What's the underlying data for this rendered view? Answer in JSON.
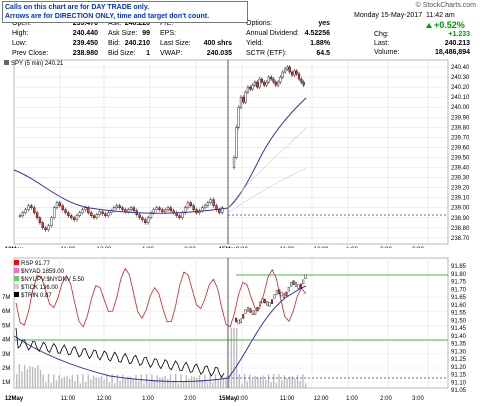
{
  "notice": {
    "line1": "Calls on this chart are for DAY TRADE only.",
    "line2": "Arrows are for DIRECTION ONLY, time and target don't count."
  },
  "branding": {
    "logo": "© StockCharts.com"
  },
  "quote": {
    "date": "Monday 15-May-2017",
    "time": "11:42 am",
    "chg_pct": "+0.52%",
    "rows": [
      {
        "a_label": "Open:",
        "a_val": "239.470",
        "b_label": "Ask:",
        "b_val": "240.220",
        "c_label": "P/E:",
        "c_val": "",
        "d_label": "Options:",
        "d_val": "yes"
      },
      {
        "a_label": "High:",
        "a_val": "240.440",
        "b_label": "Ask Size:",
        "b_val": "99",
        "c_label": "EPS:",
        "c_val": "",
        "d_label": "Annual Dividend:",
        "d_val": "4.52256"
      },
      {
        "a_label": "Low:",
        "a_val": "239.450",
        "b_label": "Bid:",
        "b_val": "240.210",
        "c_label": "Last Size:",
        "c_val": "400 shrs",
        "d_label": "Yield:",
        "d_val": "1.88%"
      },
      {
        "a_label": "Prev Close:",
        "a_val": "238.980",
        "b_label": "Bid Size:",
        "b_val": "1",
        "c_label": "VWAP:",
        "c_val": "240.035",
        "d_label": "SCTR (ETF):",
        "d_val": "64.5"
      }
    ],
    "right": [
      {
        "label": "Chg:",
        "val": "+1.233"
      },
      {
        "label": "Last:",
        "val": "240.213"
      },
      {
        "label": "Volume:",
        "val": "18,486,894"
      }
    ]
  },
  "price_panel": {
    "legend": "SPY (5 min) 240.21",
    "y_ticks": [
      "240.40",
      "240.30",
      "240.20",
      "240.10",
      "240.00",
      "239.90",
      "239.80",
      "239.70",
      "239.60",
      "239.50",
      "239.40",
      "239.30",
      "239.20",
      "239.10",
      "239.00",
      "238.90",
      "238.80",
      "238.70"
    ],
    "x_ticks": [
      "12May",
      "11:00",
      "12:00",
      "1:00",
      "2:00",
      "3:00",
      "15May",
      "11:00",
      "12:00",
      "1:00",
      "2:00",
      "3:00"
    ]
  },
  "indicator_panel": {
    "legend": [
      "RSP 91.77",
      "$NYAD 1859.00",
      "$NYUPV:$NYDNV 5.50",
      "$TICK 136.00",
      "$TRIN 0.87"
    ],
    "y_ticks_right": [
      "91.85",
      "91.80",
      "91.75",
      "91.70",
      "91.65",
      "91.60",
      "91.55",
      "91.50",
      "91.45",
      "91.40",
      "91.35",
      "91.30",
      "91.25",
      "91.20",
      "91.15",
      "91.10",
      "91.05"
    ],
    "y_ticks_left": [
      "7M",
      "6M",
      "5M",
      "4M",
      "3M",
      "2M",
      "1M"
    ],
    "x_ticks": [
      "12May",
      "11:00",
      "12:00",
      "1:00",
      "2:00",
      "3:00",
      "15May",
      "11:00",
      "12:00",
      "1:00",
      "2:00",
      "3:00"
    ]
  },
  "colors": {
    "up": "#009900",
    "link": "#0033cc",
    "ma": "#3333aa",
    "rsi": "#cc2222",
    "green_line": "#00aa00",
    "dotted": "#3333cc"
  }
}
